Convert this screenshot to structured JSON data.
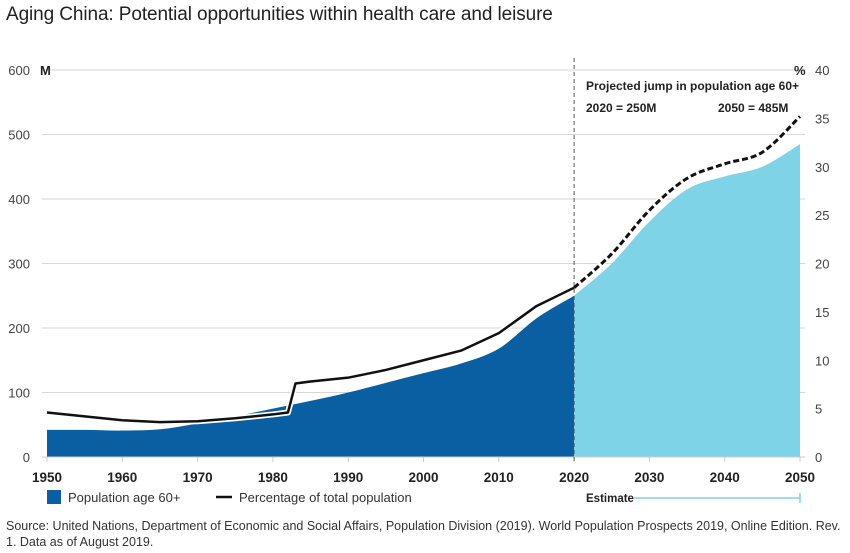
{
  "title": "Aging China: Potential opportunities within health care and leisure",
  "source": "Source: United Nations, Department of Economic and Social Affairs, Population Division (2019). World Population Prospects 2019, Online Edition. Rev. 1. Data as of August 2019.",
  "colors": {
    "historical_area": "#0a5fa3",
    "estimate_area": "#7fd3e6",
    "line": "#111111",
    "grid": "#d6d6d6",
    "divider": "#555555"
  },
  "chart_data": {
    "type": "area",
    "title": "Aging China: Potential opportunities within health care and leisure",
    "x_ticks": [
      1950,
      1960,
      1970,
      1980,
      1990,
      2000,
      2010,
      2020,
      2030,
      2040,
      2050
    ],
    "xlim": [
      1950,
      2050
    ],
    "left_axis": {
      "unit_label": "M",
      "ticks": [
        0,
        100,
        200,
        300,
        400,
        500,
        600
      ],
      "ylim": [
        0,
        600
      ]
    },
    "right_axis": {
      "unit_label": "%",
      "ticks": [
        0,
        5,
        10,
        15,
        20,
        25,
        30,
        35,
        40
      ],
      "ylim": [
        0,
        40
      ]
    },
    "grid": true,
    "estimate_start": 2020,
    "series": [
      {
        "name": "Population age 60+",
        "type": "area",
        "axis": "left",
        "x": [
          1950,
          1955,
          1960,
          1965,
          1970,
          1975,
          1980,
          1985,
          1990,
          1995,
          2000,
          2005,
          2010,
          2015,
          2020,
          2025,
          2030,
          2035,
          2040,
          2045,
          2050
        ],
        "values": [
          42,
          42,
          41,
          43,
          52,
          63,
          75,
          87,
          100,
          115,
          130,
          145,
          168,
          215,
          250,
          300,
          365,
          415,
          435,
          450,
          485
        ]
      },
      {
        "name": "Percentage of total population",
        "type": "line",
        "axis": "right",
        "x": [
          1950,
          1955,
          1960,
          1965,
          1970,
          1975,
          1980,
          1982,
          1983,
          1985,
          1990,
          1995,
          2000,
          2005,
          2010,
          2015,
          2020,
          2025,
          2030,
          2035,
          2040,
          2045,
          2050
        ],
        "values": [
          4.6,
          4.2,
          3.8,
          3.6,
          3.7,
          4.0,
          4.4,
          4.6,
          7.6,
          7.8,
          8.2,
          9.0,
          10.0,
          11.0,
          12.8,
          15.6,
          17.5,
          21.0,
          25.5,
          28.8,
          30.3,
          31.5,
          35.2
        ]
      }
    ],
    "annotations": {
      "heading": "Projected jump in population age 60+",
      "left_value": "2020 = 250M",
      "right_value": "2050 = 485M"
    },
    "legend": {
      "placement": "bottom",
      "items": [
        "Population age 60+",
        "Percentage of total population"
      ],
      "estimate_label": "Estimate"
    }
  }
}
